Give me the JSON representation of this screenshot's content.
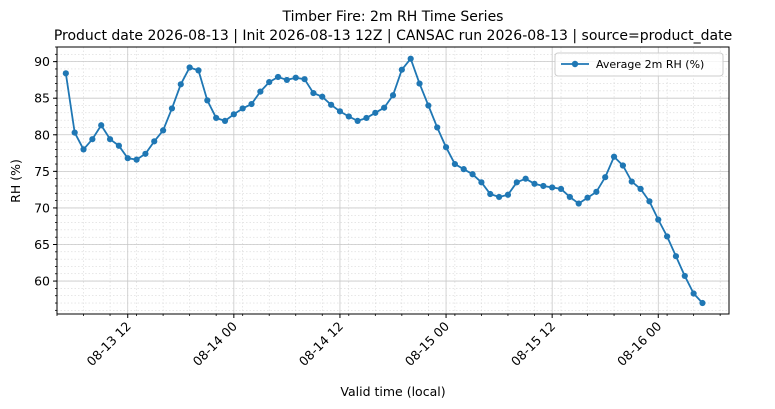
{
  "chart_data": {
    "type": "line",
    "title": "Timber Fire: 2m RH Time Series",
    "subtitle": "Product date 2026-08-13 | Init 2026-08-13 12Z | CANSAC run 2026-08-13 | source=product_date",
    "xlabel": "Valid time (local)",
    "ylabel": "RH (%)",
    "ylim": [
      55.5,
      92
    ],
    "yticks": [
      60,
      65,
      70,
      75,
      80,
      85,
      90
    ],
    "xlim": [
      "2026-08-13 04:00",
      "2026-08-16 08:00"
    ],
    "xticks": [
      {
        "time": "2026-08-13 12:00",
        "label": "08-13 12"
      },
      {
        "time": "2026-08-14 00:00",
        "label": "08-14 00"
      },
      {
        "time": "2026-08-14 12:00",
        "label": "08-14 12"
      },
      {
        "time": "2026-08-15 00:00",
        "label": "08-15 00"
      },
      {
        "time": "2026-08-15 12:00",
        "label": "08-15 12"
      },
      {
        "time": "2026-08-16 00:00",
        "label": "08-16 00"
      }
    ],
    "grid": true,
    "legend_position": "top-right",
    "series_color": "#1f77b4",
    "series": [
      {
        "name": "Average 2m RH (%)",
        "start": "2026-08-13 05:00",
        "step_hours": 1,
        "values": [
          88.4,
          80.3,
          78.0,
          79.4,
          81.3,
          79.4,
          78.5,
          76.8,
          76.6,
          77.4,
          79.1,
          80.6,
          83.6,
          86.9,
          89.2,
          88.8,
          84.7,
          82.3,
          81.9,
          82.8,
          83.6,
          84.2,
          85.9,
          87.2,
          87.9,
          87.5,
          87.8,
          87.6,
          85.7,
          85.2,
          84.1,
          83.2,
          82.5,
          81.9,
          82.3,
          83.0,
          83.7,
          85.4,
          88.9,
          90.4,
          87.0,
          84.0,
          81.0,
          78.3,
          76.0,
          75.3,
          74.6,
          73.5,
          71.9,
          71.5,
          71.8,
          73.5,
          74.0,
          73.3,
          73.0,
          72.8,
          72.6,
          71.5,
          70.6,
          71.4,
          72.2,
          74.2,
          77.0,
          75.8,
          73.6,
          72.6,
          70.9,
          68.4,
          66.1,
          63.4,
          60.7,
          58.3,
          57.0
        ]
      }
    ]
  }
}
